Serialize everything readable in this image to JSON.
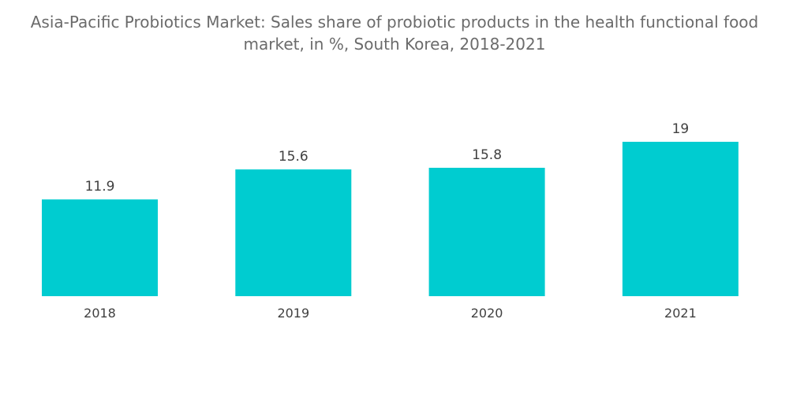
{
  "chart_data": {
    "type": "bar",
    "title_line1": "Asia-Pacific Probiotics Market: Sales share of probiotic products in the health functional food",
    "title_line2": "market, in %, South Korea, 2018-2021",
    "categories": [
      "2018",
      "2019",
      "2020",
      "2021"
    ],
    "values": [
      11.9,
      15.6,
      15.8,
      19
    ],
    "value_labels": [
      "11.9",
      "15.6",
      "15.8",
      "19"
    ],
    "xlabel": "",
    "ylabel": "",
    "ylim": [
      0,
      19
    ],
    "grid": false,
    "legend": "none",
    "bar_color": "#00CCD0"
  }
}
